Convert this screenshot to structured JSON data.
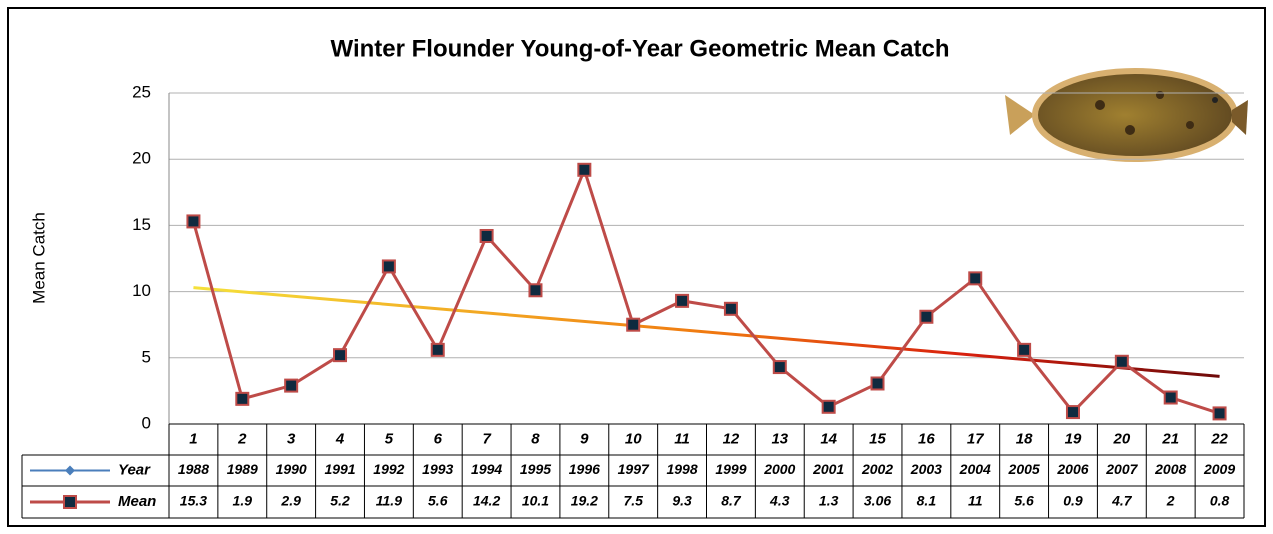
{
  "chart_data": {
    "type": "line",
    "title": "Winter Flounder Young-of-Year Geometric Mean Catch",
    "y_label": "Mean Catch",
    "categories": [
      1,
      2,
      3,
      4,
      5,
      6,
      7,
      8,
      9,
      10,
      11,
      12,
      13,
      14,
      15,
      16,
      17,
      18,
      19,
      20,
      21,
      22
    ],
    "series": [
      {
        "name": "Year",
        "color": "#4a7ebb",
        "values": [
          1988,
          1989,
          1990,
          1991,
          1992,
          1993,
          1994,
          1995,
          1996,
          1997,
          1998,
          1999,
          2000,
          2001,
          2002,
          2003,
          2004,
          2005,
          2006,
          2007,
          2008,
          2009
        ]
      },
      {
        "name": "Mean",
        "color": "#be4b48",
        "values": [
          15.3,
          1.9,
          2.9,
          5.2,
          11.9,
          5.6,
          14.2,
          10.1,
          19.2,
          7.5,
          9.3,
          8.7,
          4.3,
          1.3,
          3.06,
          8.1,
          11,
          5.6,
          0.9,
          4.7,
          2,
          0.8
        ]
      }
    ],
    "trend_line": [
      10.3,
      3.6
    ],
    "ylim": [
      0,
      25
    ],
    "yticks": [
      0,
      5,
      10,
      15,
      20,
      25
    ],
    "grid": true
  }
}
